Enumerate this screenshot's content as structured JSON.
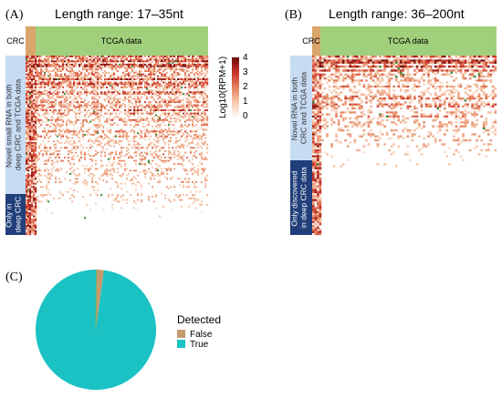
{
  "chart_data": [
    {
      "type": "heatmap",
      "panel_label": "(A)",
      "title": "Length range: 17–35nt",
      "column_groups": [
        {
          "name": "CRC",
          "color": "#d9a66b"
        },
        {
          "name": "TCGA data",
          "color": "#a1d07c"
        }
      ],
      "row_groups": [
        {
          "name": "Novel small RNA in both deep CRC and TCGA data",
          "color": "#c7dbf3",
          "text_color": "#333333"
        },
        {
          "name": "Only in deep CRC",
          "color": "#213f7a",
          "text_color": "#ffffff"
        }
      ],
      "colorbar": {
        "label": "Log10(RPM+1)",
        "min": 0,
        "max": 4,
        "ticks": [
          "4",
          "3",
          "2",
          "1",
          "0"
        ],
        "colors": [
          "#ffffff",
          "#f7c9ac",
          "#e5815f",
          "#c7322a",
          "#6b0d0d"
        ]
      }
    },
    {
      "type": "heatmap",
      "panel_label": "(B)",
      "title": "Length range: 36–200nt",
      "column_groups": [
        {
          "name": "CRC",
          "color": "#d9a66b"
        },
        {
          "name": "TCGA data",
          "color": "#a1d07c"
        }
      ],
      "row_groups": [
        {
          "name": "Novel RNA in both CRC and TCGA data",
          "color": "#c7dbf3",
          "text_color": "#333333"
        },
        {
          "name": "Only discovered in deep CRC data",
          "color": "#213f7a",
          "text_color": "#ffffff"
        }
      ]
    },
    {
      "type": "pie",
      "panel_label": "(C)",
      "legend_title": "Detected",
      "categories": [
        "False",
        "True"
      ],
      "values": [
        0.02,
        0.98
      ],
      "colors": [
        "#c59b6e",
        "#1bc2c4"
      ],
      "legend_position": "right"
    }
  ]
}
